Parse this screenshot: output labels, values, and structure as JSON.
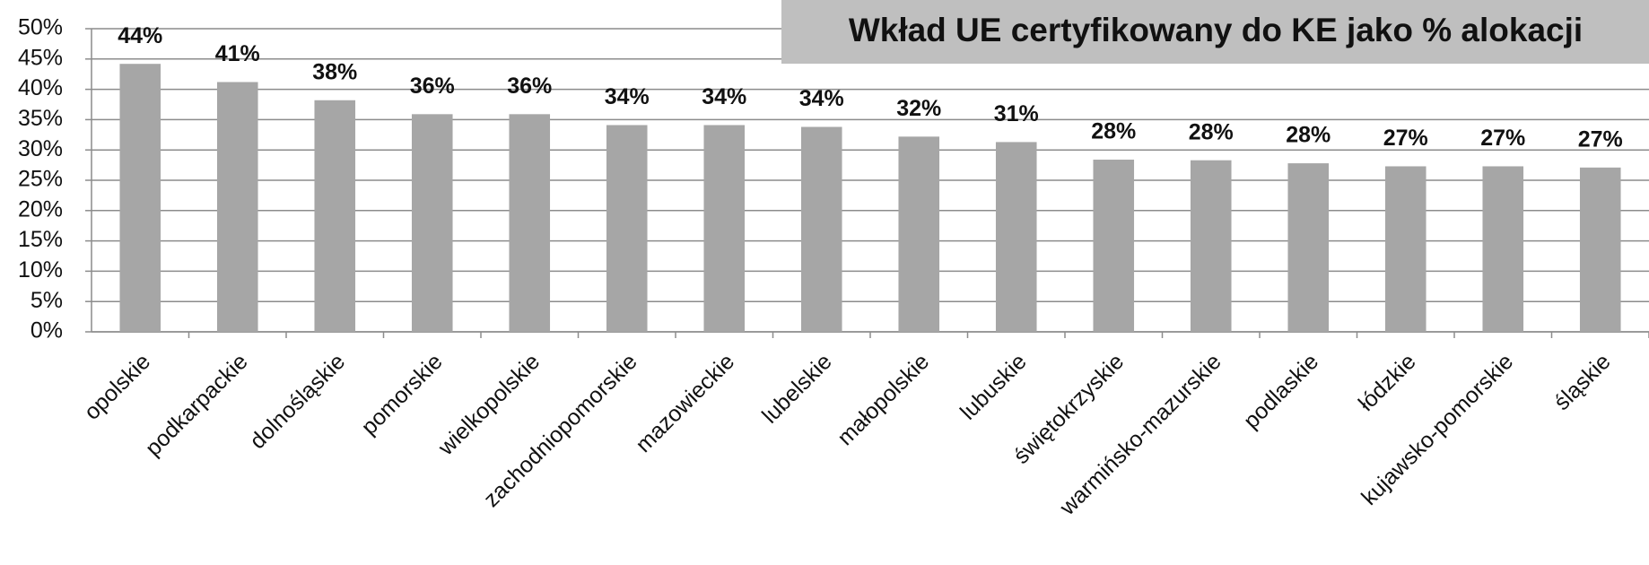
{
  "chart_data": {
    "type": "bar",
    "title": "Wkład UE certyfikowany do KE jako % alokacji",
    "categories": [
      "opolskie",
      "podkarpackie",
      "dolnośląskie",
      "pomorskie",
      "wielkopolskie",
      "zachodniopomorskie",
      "mazowieckie",
      "lubelskie",
      "małopolskie",
      "lubuskie",
      "świętokrzyskie",
      "warmińsko-mazurskie",
      "podlaskie",
      "łódzkie",
      "kujawsko-pomorskie",
      "śląskie"
    ],
    "values": [
      44.2,
      41.2,
      38.2,
      35.9,
      35.9,
      34.1,
      34.1,
      33.8,
      32.2,
      31.3,
      28.4,
      28.3,
      27.8,
      27.3,
      27.3,
      27.1
    ],
    "value_labels": [
      "44%",
      "41%",
      "38%",
      "36%",
      "36%",
      "34%",
      "34%",
      "34%",
      "32%",
      "31%",
      "28%",
      "28%",
      "28%",
      "27%",
      "27%",
      "27%"
    ],
    "color": "#a6a6a6",
    "ylim": [
      0,
      50
    ],
    "yticks": [
      {
        "value": 0,
        "label": "0%"
      },
      {
        "value": 5,
        "label": "5%"
      },
      {
        "value": 10,
        "label": "10%"
      },
      {
        "value": 15,
        "label": "15%"
      },
      {
        "value": 20,
        "label": "20%"
      },
      {
        "value": 25,
        "label": "25%"
      },
      {
        "value": 30,
        "label": "30%"
      },
      {
        "value": 35,
        "label": "35%"
      },
      {
        "value": 40,
        "label": "40%"
      },
      {
        "value": 45,
        "label": "45%"
      },
      {
        "value": 50,
        "label": "50%"
      }
    ],
    "grid": true
  }
}
